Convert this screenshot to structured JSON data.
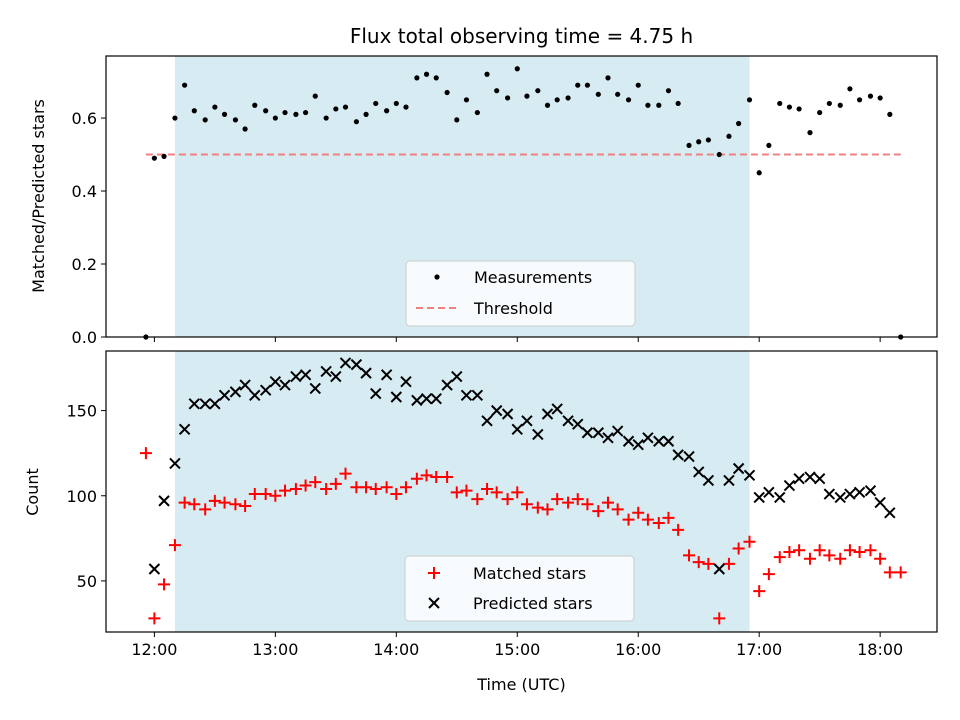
{
  "title": "Flux total observing time = 4.75 h",
  "colors": {
    "band": "#add8e6",
    "threshold": "#f08080",
    "matched": "#ff0000",
    "predicted": "#000000",
    "measure": "#000000"
  },
  "chart_data": [
    {
      "type": "scatter",
      "ylabel": "Matched/Predicted stars",
      "xlim": [
        11.6,
        18.47
      ],
      "ylim": [
        0,
        0.77
      ],
      "x_ticks": [
        "12:00",
        "13:00",
        "14:00",
        "15:00",
        "16:00",
        "17:00",
        "18:00"
      ],
      "y_ticks": [
        0.0,
        0.2,
        0.4,
        0.6
      ],
      "y_tick_labels": [
        "0.0",
        "0.2",
        "0.4",
        "0.6"
      ],
      "shaded_range": [
        12.17,
        16.92
      ],
      "threshold": {
        "name": "Threshold",
        "value": 0.5,
        "x_range": [
          11.93,
          18.17
        ],
        "style": "dashed"
      },
      "legend": {
        "placement": "bottom-center",
        "entries": [
          "Measurements",
          "Threshold"
        ]
      },
      "series": [
        {
          "name": "Measurements",
          "marker": "dot",
          "x": [
            11.93,
            12.0,
            12.08,
            12.17,
            12.25,
            12.33,
            12.42,
            12.5,
            12.58,
            12.67,
            12.75,
            12.83,
            12.92,
            13.0,
            13.08,
            13.17,
            13.25,
            13.33,
            13.42,
            13.5,
            13.58,
            13.67,
            13.75,
            13.83,
            13.92,
            14.0,
            14.08,
            14.17,
            14.25,
            14.33,
            14.42,
            14.5,
            14.58,
            14.67,
            14.75,
            14.83,
            14.92,
            15.0,
            15.08,
            15.17,
            15.25,
            15.33,
            15.42,
            15.5,
            15.58,
            15.67,
            15.75,
            15.83,
            15.92,
            16.0,
            16.08,
            16.17,
            16.25,
            16.33,
            16.42,
            16.5,
            16.58,
            16.67,
            16.75,
            16.83,
            16.92,
            17.0,
            17.08,
            17.17,
            17.25,
            17.33,
            17.42,
            17.5,
            17.58,
            17.67,
            17.75,
            17.83,
            17.92,
            18.0,
            18.08,
            18.17
          ],
          "y": [
            0.0,
            0.49,
            0.495,
            0.6,
            0.69,
            0.62,
            0.595,
            0.63,
            0.61,
            0.595,
            0.57,
            0.635,
            0.62,
            0.6,
            0.615,
            0.61,
            0.615,
            0.66,
            0.6,
            0.625,
            0.63,
            0.59,
            0.61,
            0.64,
            0.62,
            0.64,
            0.63,
            0.71,
            0.72,
            0.71,
            0.67,
            0.595,
            0.65,
            0.615,
            0.72,
            0.675,
            0.655,
            0.735,
            0.66,
            0.675,
            0.635,
            0.65,
            0.655,
            0.69,
            0.69,
            0.665,
            0.71,
            0.665,
            0.65,
            0.69,
            0.635,
            0.635,
            0.675,
            0.64,
            0.525,
            0.535,
            0.54,
            0.5,
            0.55,
            0.585,
            0.65,
            0.45,
            0.525,
            0.64,
            0.63,
            0.625,
            0.56,
            0.615,
            0.64,
            0.635,
            0.68,
            0.65,
            0.66,
            0.655,
            0.61,
            0.0
          ]
        }
      ]
    },
    {
      "type": "scatter",
      "xlabel": "Time (UTC)",
      "ylabel": "Count",
      "xlim": [
        11.6,
        18.47
      ],
      "ylim": [
        20,
        185
      ],
      "x_ticks": [
        "12:00",
        "13:00",
        "14:00",
        "15:00",
        "16:00",
        "17:00",
        "18:00"
      ],
      "y_ticks": [
        50,
        100,
        150
      ],
      "y_tick_labels": [
        "50",
        "100",
        "150"
      ],
      "shaded_range": [
        12.17,
        16.92
      ],
      "legend": {
        "placement": "bottom-center",
        "entries": [
          "Matched stars",
          "Predicted stars"
        ]
      },
      "series": [
        {
          "name": "Matched stars",
          "marker": "plus",
          "x": [
            11.93,
            12.0,
            12.08,
            12.17,
            12.25,
            12.33,
            12.42,
            12.5,
            12.58,
            12.67,
            12.75,
            12.83,
            12.92,
            13.0,
            13.08,
            13.17,
            13.25,
            13.33,
            13.42,
            13.5,
            13.58,
            13.67,
            13.75,
            13.83,
            13.92,
            14.0,
            14.08,
            14.17,
            14.25,
            14.33,
            14.42,
            14.5,
            14.58,
            14.67,
            14.75,
            14.83,
            14.92,
            15.0,
            15.08,
            15.17,
            15.25,
            15.33,
            15.42,
            15.5,
            15.58,
            15.67,
            15.75,
            15.83,
            15.92,
            16.0,
            16.08,
            16.17,
            16.25,
            16.33,
            16.42,
            16.5,
            16.58,
            16.67,
            16.75,
            16.83,
            16.92,
            17.0,
            17.08,
            17.17,
            17.25,
            17.33,
            17.42,
            17.5,
            17.58,
            17.67,
            17.75,
            17.83,
            17.92,
            18.0,
            18.08,
            18.17
          ],
          "y": [
            125,
            28,
            48,
            71,
            96,
            95,
            92,
            97,
            96,
            95,
            94,
            101,
            101,
            100,
            103,
            104,
            106,
            108,
            104,
            107,
            113,
            105,
            105,
            104,
            105,
            101,
            105,
            110,
            112,
            111,
            111,
            102,
            103,
            98,
            104,
            102,
            98,
            102,
            95,
            93,
            92,
            98,
            96,
            98,
            95,
            91,
            96,
            92,
            86,
            90,
            86,
            84,
            87,
            80,
            65,
            61,
            60,
            28,
            60,
            69,
            73,
            44,
            54,
            64,
            67,
            68,
            63,
            68,
            65,
            63,
            68,
            67,
            68,
            63,
            55,
            55
          ]
        },
        {
          "name": "Predicted stars",
          "marker": "x",
          "x": [
            12.0,
            12.08,
            12.17,
            12.25,
            12.33,
            12.42,
            12.5,
            12.58,
            12.67,
            12.75,
            12.83,
            12.92,
            13.0,
            13.08,
            13.17,
            13.25,
            13.33,
            13.42,
            13.5,
            13.58,
            13.67,
            13.75,
            13.83,
            13.92,
            14.0,
            14.08,
            14.17,
            14.25,
            14.33,
            14.42,
            14.5,
            14.58,
            14.67,
            14.75,
            14.83,
            14.92,
            15.0,
            15.08,
            15.17,
            15.25,
            15.33,
            15.42,
            15.5,
            15.58,
            15.67,
            15.75,
            15.83,
            15.92,
            16.0,
            16.08,
            16.17,
            16.25,
            16.33,
            16.42,
            16.5,
            16.58,
            16.67,
            16.75,
            16.83,
            16.92,
            17.0,
            17.08,
            17.17,
            17.25,
            17.33,
            17.42,
            17.5,
            17.58,
            17.67,
            17.75,
            17.83,
            17.92,
            18.0,
            18.08
          ],
          "y": [
            57,
            97,
            119,
            139,
            154,
            154,
            154,
            159,
            161,
            165,
            159,
            162,
            167,
            165,
            170,
            171,
            163,
            173,
            170,
            178,
            177,
            172,
            160,
            171,
            158,
            167,
            156,
            157,
            157,
            165,
            170,
            159,
            159,
            144,
            150,
            148,
            139,
            144,
            136,
            148,
            151,
            144,
            142,
            137,
            137,
            134,
            138,
            132,
            130,
            134,
            132,
            132,
            124,
            123,
            114,
            109,
            57,
            109,
            116,
            112,
            99,
            102,
            99,
            106,
            110,
            111,
            110,
            101,
            99,
            101,
            102,
            103,
            96,
            90
          ]
        }
      ]
    }
  ]
}
